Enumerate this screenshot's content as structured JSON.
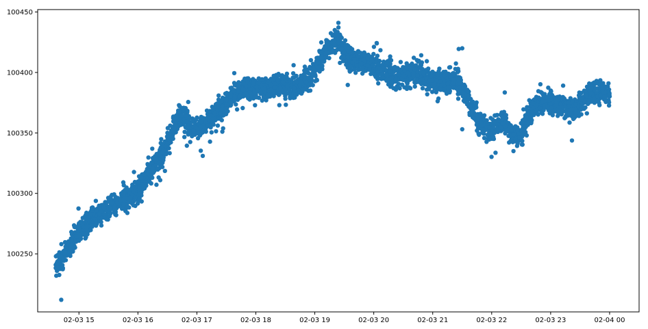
{
  "chart_data": {
    "type": "scatter",
    "title": "",
    "xlabel": "",
    "ylabel": "",
    "grid": false,
    "legend": "none",
    "marker_color": "#1f77b4",
    "x_axis": {
      "kind": "datetime",
      "range": [
        "2025-02-03 14:18",
        "2025-02-04 00:30"
      ],
      "ticks": [
        {
          "value": "2025-02-03 15:00",
          "label": "02-03 15"
        },
        {
          "value": "2025-02-03 16:00",
          "label": "02-03 16"
        },
        {
          "value": "2025-02-03 17:00",
          "label": "02-03 17"
        },
        {
          "value": "2025-02-03 18:00",
          "label": "02-03 18"
        },
        {
          "value": "2025-02-03 19:00",
          "label": "02-03 19"
        },
        {
          "value": "2025-02-03 20:00",
          "label": "02-03 20"
        },
        {
          "value": "2025-02-03 21:00",
          "label": "02-03 21"
        },
        {
          "value": "2025-02-03 22:00",
          "label": "02-03 22"
        },
        {
          "value": "2025-02-03 23:00",
          "label": "02-03 23"
        },
        {
          "value": "2025-02-04 00:00",
          "label": "02-04 00"
        }
      ]
    },
    "y_axis": {
      "range": [
        100202,
        100452
      ],
      "ticks": [
        {
          "value": 100250,
          "label": "100250"
        },
        {
          "value": 100300,
          "label": "100300"
        },
        {
          "value": 100350,
          "label": "100350"
        },
        {
          "value": 100400,
          "label": "100400"
        },
        {
          "value": 100450,
          "label": "100450"
        }
      ]
    },
    "series": [
      {
        "trend": [
          [
            "2025-02-03 14:36",
            100240
          ],
          [
            "2025-02-03 14:48",
            100252
          ],
          [
            "2025-02-03 15:00",
            100268
          ],
          [
            "2025-02-03 15:12",
            100278
          ],
          [
            "2025-02-03 15:24",
            100285
          ],
          [
            "2025-02-03 15:36",
            100290
          ],
          [
            "2025-02-03 15:48",
            100296
          ],
          [
            "2025-02-03 16:00",
            100302
          ],
          [
            "2025-02-03 16:06",
            100310
          ],
          [
            "2025-02-03 16:12",
            100318
          ],
          [
            "2025-02-03 16:24",
            100332
          ],
          [
            "2025-02-03 16:36",
            100352
          ],
          [
            "2025-02-03 16:42",
            100365
          ],
          [
            "2025-02-03 16:48",
            100362
          ],
          [
            "2025-02-03 16:54",
            100354
          ],
          [
            "2025-02-03 17:00",
            100352
          ],
          [
            "2025-02-03 17:06",
            100355
          ],
          [
            "2025-02-03 17:12",
            100362
          ],
          [
            "2025-02-03 17:24",
            100370
          ],
          [
            "2025-02-03 17:36",
            100380
          ],
          [
            "2025-02-03 17:48",
            100388
          ],
          [
            "2025-02-03 18:00",
            100386
          ],
          [
            "2025-02-03 18:12",
            100385
          ],
          [
            "2025-02-03 18:24",
            100390
          ],
          [
            "2025-02-03 18:36",
            100388
          ],
          [
            "2025-02-03 18:48",
            100390
          ],
          [
            "2025-02-03 19:00",
            100402
          ],
          [
            "2025-02-03 19:12",
            100418
          ],
          [
            "2025-02-03 19:24",
            100428
          ],
          [
            "2025-02-03 19:30",
            100418
          ],
          [
            "2025-02-03 19:36",
            100410
          ],
          [
            "2025-02-03 19:48",
            100408
          ],
          [
            "2025-02-03 20:00",
            100406
          ],
          [
            "2025-02-03 20:12",
            100400
          ],
          [
            "2025-02-03 20:24",
            100396
          ],
          [
            "2025-02-03 20:36",
            100400
          ],
          [
            "2025-02-03 20:48",
            100398
          ],
          [
            "2025-02-03 21:00",
            100394
          ],
          [
            "2025-02-03 21:12",
            100392
          ],
          [
            "2025-02-03 21:24",
            100394
          ],
          [
            "2025-02-03 21:36",
            100378
          ],
          [
            "2025-02-03 21:48",
            100358
          ],
          [
            "2025-02-03 22:00",
            100352
          ],
          [
            "2025-02-03 22:12",
            100360
          ],
          [
            "2025-02-03 22:24",
            100346
          ],
          [
            "2025-02-03 22:30",
            100350
          ],
          [
            "2025-02-03 22:36",
            100362
          ],
          [
            "2025-02-03 22:48",
            100376
          ],
          [
            "2025-02-03 23:00",
            100376
          ],
          [
            "2025-02-03 23:12",
            100372
          ],
          [
            "2025-02-03 23:24",
            100368
          ],
          [
            "2025-02-03 23:36",
            100380
          ],
          [
            "2025-02-03 23:48",
            100384
          ],
          [
            "2025-02-04 00:00",
            100382
          ]
        ],
        "spread": 8,
        "outliers": [
          [
            "2025-02-03 14:42",
            100212
          ],
          [
            "2025-02-03 17:06",
            100331
          ],
          [
            "2025-02-03 19:24",
            100441
          ],
          [
            "2025-02-03 21:30",
            100420
          ],
          [
            "2025-02-03 21:30",
            100353
          ]
        ]
      }
    ]
  }
}
